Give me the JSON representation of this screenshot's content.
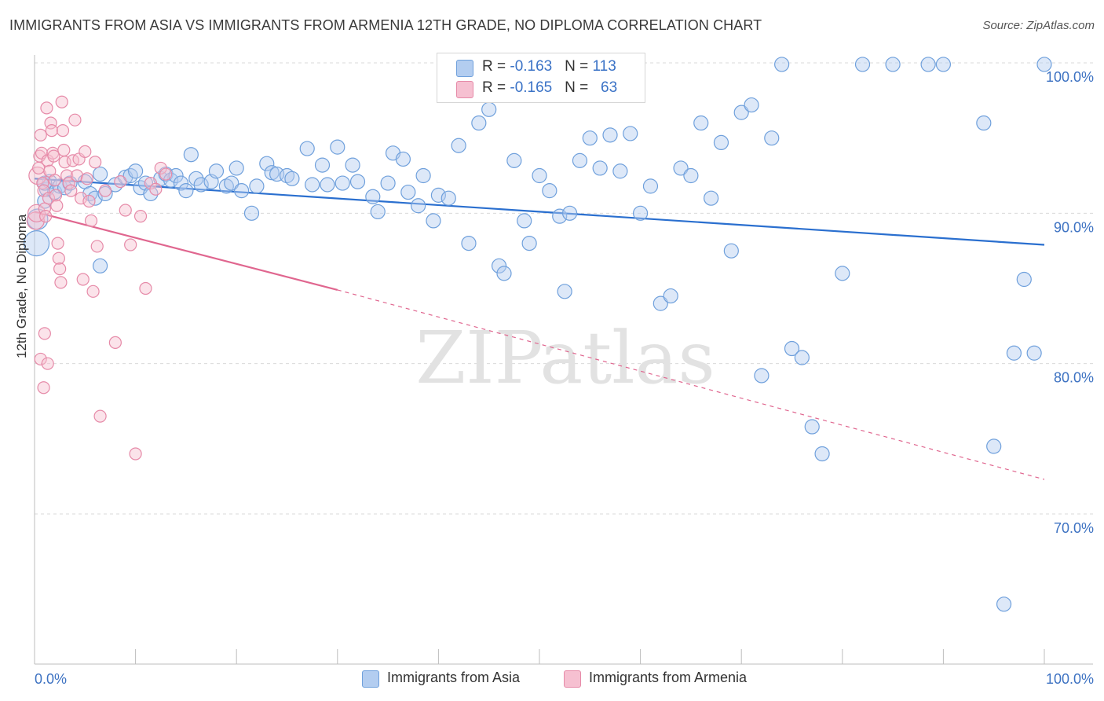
{
  "title": "IMMIGRANTS FROM ASIA VS IMMIGRANTS FROM ARMENIA 12TH GRADE, NO DIPLOMA CORRELATION CHART",
  "source": "Source: ZipAtlas.com",
  "watermark": "ZIPatlas",
  "colors": {
    "asia": "#6fa0dc",
    "asia_fill": "#b3cdf0",
    "asia_line": "#2a6fcf",
    "armenia": "#e68aa8",
    "armenia_fill": "#f6c0d1",
    "armenia_line": "#e0668f",
    "tick_label": "#3d72c2",
    "grid": "#d9d9d9"
  },
  "legend_top": {
    "rows": [
      {
        "r_label": "R = ",
        "r_value": "-0.163",
        "n_label": "N = ",
        "n_value": "113"
      },
      {
        "r_label": "R = ",
        "r_value": "-0.165",
        "n_label": "N = ",
        "n_value": "63"
      }
    ]
  },
  "chart_data": {
    "type": "scatter",
    "title": "IMMIGRANTS FROM ASIA VS IMMIGRANTS FROM ARMENIA 12TH GRADE, NO DIPLOMA CORRELATION CHART",
    "xlabel": "",
    "ylabel": "12th Grade, No Diploma",
    "x_tick_labels": [
      "0.0%",
      "100.0%"
    ],
    "y_tick_labels": [
      "100.0%",
      "90.0%",
      "80.0%",
      "70.0%"
    ],
    "y_ticks": [
      100,
      90,
      80,
      70
    ],
    "xlim": [
      0,
      100
    ],
    "ylim": [
      60,
      101.5
    ],
    "grid": true,
    "legend_position": "bottom",
    "series": [
      {
        "name": "Immigrants from Asia",
        "r": -0.163,
        "n": 113,
        "trend": {
          "x": [
            0,
            100
          ],
          "y": [
            92.3,
            87.9
          ],
          "style": "solid"
        },
        "points": [
          [
            0.2,
            88.0
          ],
          [
            0.3,
            89.6
          ],
          [
            1.0,
            90.8
          ],
          [
            1.2,
            91.6
          ],
          [
            1.5,
            92.1
          ],
          [
            2.0,
            91.4
          ],
          [
            2.5,
            91.8
          ],
          [
            3.0,
            91.7
          ],
          [
            3.5,
            92.0
          ],
          [
            5.0,
            92.1
          ],
          [
            5.5,
            91.3
          ],
          [
            6.0,
            91.0
          ],
          [
            6.5,
            92.6
          ],
          [
            7.0,
            91.3
          ],
          [
            8.0,
            91.9
          ],
          [
            9.0,
            92.4
          ],
          [
            9.5,
            92.5
          ],
          [
            10.0,
            92.8
          ],
          [
            10.5,
            91.7
          ],
          [
            11.0,
            92.0
          ],
          [
            11.5,
            91.3
          ],
          [
            12.5,
            92.3
          ],
          [
            13.0,
            92.6
          ],
          [
            13.5,
            92.2
          ],
          [
            14.0,
            92.5
          ],
          [
            14.5,
            92.0
          ],
          [
            15.0,
            91.5
          ],
          [
            15.5,
            93.9
          ],
          [
            16.0,
            92.3
          ],
          [
            16.5,
            91.9
          ],
          [
            17.5,
            92.1
          ],
          [
            18.0,
            92.8
          ],
          [
            19.0,
            91.8
          ],
          [
            19.5,
            92.0
          ],
          [
            20.0,
            93.0
          ],
          [
            20.5,
            91.5
          ],
          [
            21.5,
            90.0
          ],
          [
            22.0,
            91.8
          ],
          [
            23.0,
            93.3
          ],
          [
            23.5,
            92.7
          ],
          [
            24.0,
            92.6
          ],
          [
            25.0,
            92.5
          ],
          [
            25.5,
            92.3
          ],
          [
            27.0,
            94.3
          ],
          [
            27.5,
            91.9
          ],
          [
            28.5,
            93.2
          ],
          [
            29.0,
            91.9
          ],
          [
            30.0,
            94.4
          ],
          [
            30.5,
            92.0
          ],
          [
            31.5,
            93.2
          ],
          [
            32.0,
            92.1
          ],
          [
            33.5,
            91.1
          ],
          [
            34.0,
            90.1
          ],
          [
            35.0,
            92.0
          ],
          [
            35.5,
            94.0
          ],
          [
            36.5,
            93.6
          ],
          [
            37.0,
            91.4
          ],
          [
            38.0,
            90.5
          ],
          [
            38.5,
            92.5
          ],
          [
            39.5,
            89.5
          ],
          [
            40.0,
            91.2
          ],
          [
            41.0,
            91.0
          ],
          [
            42.0,
            94.5
          ],
          [
            43.0,
            88.0
          ],
          [
            44.0,
            96.0
          ],
          [
            45.0,
            96.9
          ],
          [
            46.0,
            86.5
          ],
          [
            47.5,
            93.5
          ],
          [
            48.5,
            89.5
          ],
          [
            49.0,
            88.0
          ],
          [
            50.0,
            92.5
          ],
          [
            51.0,
            91.5
          ],
          [
            52.0,
            89.8
          ],
          [
            53.0,
            90.0
          ],
          [
            54.0,
            93.5
          ],
          [
            55.0,
            95.0
          ],
          [
            56.0,
            93.0
          ],
          [
            57.0,
            95.2
          ],
          [
            58.0,
            92.8
          ],
          [
            59.0,
            95.3
          ],
          [
            60.0,
            90.0
          ],
          [
            61.0,
            91.8
          ],
          [
            62.0,
            84.0
          ],
          [
            63.0,
            84.5
          ],
          [
            64.0,
            93.0
          ],
          [
            65.0,
            92.5
          ],
          [
            66.0,
            96.0
          ],
          [
            67.0,
            91.0
          ],
          [
            68.0,
            94.7
          ],
          [
            69.0,
            87.5
          ],
          [
            70.0,
            96.7
          ],
          [
            71.0,
            97.2
          ],
          [
            72.0,
            79.2
          ],
          [
            73.0,
            95.0
          ],
          [
            74.0,
            99.9
          ],
          [
            75.0,
            81.0
          ],
          [
            76.0,
            80.4
          ],
          [
            77.0,
            75.8
          ],
          [
            78.0,
            74.0
          ],
          [
            80.0,
            86.0
          ],
          [
            82.0,
            99.9
          ],
          [
            85.0,
            99.9
          ],
          [
            88.5,
            99.9
          ],
          [
            90.0,
            99.9
          ],
          [
            94.0,
            96.0
          ],
          [
            95.0,
            74.5
          ],
          [
            96.0,
            64.0
          ],
          [
            97.0,
            80.7
          ],
          [
            98.0,
            85.6
          ],
          [
            99.0,
            80.7
          ],
          [
            100.0,
            99.9
          ],
          [
            46.5,
            86.0
          ],
          [
            52.5,
            84.8
          ],
          [
            6.5,
            86.5
          ],
          [
            1.0,
            92.0
          ]
        ]
      },
      {
        "name": "Immigrants from Armenia",
        "r": -0.165,
        "n": 63,
        "trend": {
          "x": [
            0,
            30,
            100
          ],
          "y": [
            90.1,
            84.9,
            72.3
          ],
          "style": "solid-then-dashed"
        },
        "points": [
          [
            0.1,
            89.5
          ],
          [
            0.2,
            90.0
          ],
          [
            0.3,
            92.5
          ],
          [
            0.4,
            93.0
          ],
          [
            0.5,
            93.8
          ],
          [
            0.6,
            95.2
          ],
          [
            0.7,
            94.0
          ],
          [
            0.8,
            92.0
          ],
          [
            0.9,
            91.5
          ],
          [
            1.0,
            90.3
          ],
          [
            1.1,
            89.8
          ],
          [
            1.2,
            97.0
          ],
          [
            1.3,
            93.5
          ],
          [
            1.4,
            91.0
          ],
          [
            1.5,
            92.8
          ],
          [
            1.6,
            96.0
          ],
          [
            1.7,
            95.5
          ],
          [
            1.8,
            94.0
          ],
          [
            1.9,
            93.8
          ],
          [
            2.0,
            92.2
          ],
          [
            2.1,
            91.2
          ],
          [
            2.2,
            90.5
          ],
          [
            2.3,
            88.0
          ],
          [
            2.4,
            87.0
          ],
          [
            2.5,
            86.3
          ],
          [
            2.6,
            85.4
          ],
          [
            2.7,
            97.4
          ],
          [
            2.8,
            95.5
          ],
          [
            2.9,
            94.2
          ],
          [
            3.0,
            93.4
          ],
          [
            3.2,
            92.5
          ],
          [
            3.4,
            92.0
          ],
          [
            3.6,
            91.5
          ],
          [
            3.8,
            93.5
          ],
          [
            4.0,
            96.2
          ],
          [
            4.2,
            92.5
          ],
          [
            4.4,
            93.6
          ],
          [
            4.6,
            91.0
          ],
          [
            4.8,
            85.6
          ],
          [
            5.0,
            94.1
          ],
          [
            5.2,
            92.3
          ],
          [
            5.4,
            90.8
          ],
          [
            5.6,
            89.5
          ],
          [
            5.8,
            84.8
          ],
          [
            6.0,
            93.4
          ],
          [
            6.2,
            87.8
          ],
          [
            6.5,
            76.5
          ],
          [
            7.0,
            91.5
          ],
          [
            8.0,
            81.4
          ],
          [
            8.5,
            92.1
          ],
          [
            9.0,
            90.2
          ],
          [
            9.5,
            87.9
          ],
          [
            10.0,
            74.0
          ],
          [
            10.5,
            89.8
          ],
          [
            11.0,
            85.0
          ],
          [
            11.5,
            92.0
          ],
          [
            12.0,
            91.6
          ],
          [
            12.5,
            93.0
          ],
          [
            13.0,
            92.6
          ],
          [
            0.6,
            80.3
          ],
          [
            0.9,
            78.4
          ],
          [
            1.3,
            80.0
          ],
          [
            1.0,
            82.0
          ]
        ]
      }
    ]
  },
  "legend_bottom": {
    "items": [
      "Immigrants from Asia",
      "Immigrants from Armenia"
    ]
  }
}
